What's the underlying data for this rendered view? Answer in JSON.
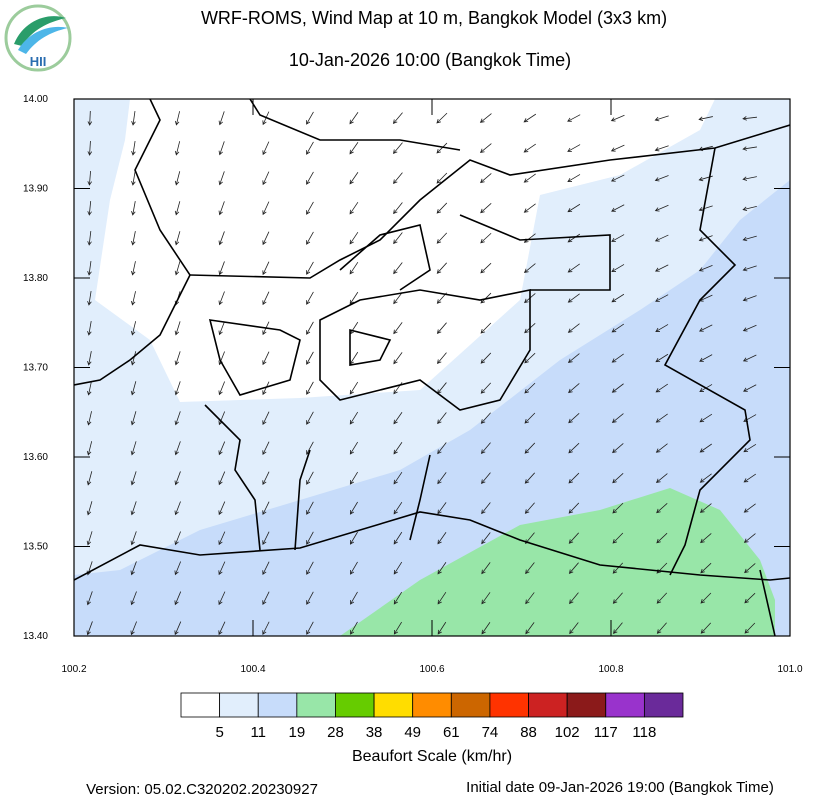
{
  "header": {
    "title": "WRF-ROMS, Wind Map at 10 m, Bangkok Model (3x3 km)",
    "subtitle": "10-Jan-2026 10:00 (Bangkok Time)"
  },
  "logo": {
    "text": "HII"
  },
  "map": {
    "xlim": [
      100.2,
      101.0
    ],
    "ylim": [
      13.4,
      14.0
    ],
    "xticks": [
      100.2,
      100.4,
      100.6,
      100.8,
      {
        "value": 101.0,
        "label": "101.0"
      }
    ],
    "yticks": [
      {
        "value": 14.0,
        "label": "14.00"
      },
      {
        "value": 13.9,
        "label": "13.90"
      },
      {
        "value": 13.8,
        "label": "13.80"
      },
      {
        "value": 13.7,
        "label": "13.70"
      },
      {
        "value": 13.6,
        "label": "13.60"
      },
      {
        "value": 13.5,
        "label": "13.50"
      },
      {
        "value": 13.4,
        "label": "13.40"
      }
    ]
  },
  "legend": {
    "title": "Beaufort Scale (km/hr)",
    "levels": [
      5,
      11,
      19,
      28,
      38,
      49,
      61,
      74,
      88,
      102,
      117,
      118
    ],
    "colors": [
      "#ffffff",
      "#e1eefc",
      "#c7dcfa",
      "#98e6a8",
      "#66cc00",
      "#ffdd00",
      "#ff8c00",
      "#cc6600",
      "#ff3300",
      "#cc2222",
      "#8b1a1a",
      "#9933cc",
      "#6a2a9a"
    ]
  },
  "footer": {
    "version": "Version: 05.02.C320202.20230927",
    "initial": "Initial date 09-Jan-2026 19:00 (Bangkok Time)"
  }
}
